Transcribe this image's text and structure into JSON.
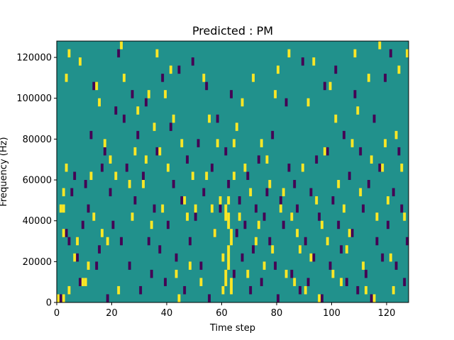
{
  "chart_data": {
    "type": "heatmap",
    "title": "Predicted : PM",
    "xlabel": "Time step",
    "ylabel": "Frequency (Hz)",
    "xlim": [
      0,
      128
    ],
    "ylim": [
      0,
      128000
    ],
    "xticks": [
      0,
      20,
      40,
      60,
      80,
      100,
      120
    ],
    "yticks": [
      0,
      20000,
      40000,
      60000,
      80000,
      100000,
      120000
    ],
    "n_time_steps": 128,
    "n_freq_bins": 128,
    "colors": {
      "background": "#21918c",
      "high": "#fde725",
      "low": "#440154"
    },
    "value_scale": {
      "low": -1,
      "background": 0,
      "high": 1
    },
    "cells_note_units": "each cell: [time_step, freq_bin_start, freq_bin_end]; freq bin width = 1000 Hz",
    "high_cells": [
      [
        0,
        0,
        4
      ],
      [
        2,
        0,
        4
      ],
      [
        2,
        44,
        48
      ],
      [
        1,
        44,
        48
      ],
      [
        2,
        32,
        36
      ],
      [
        3,
        64,
        68
      ],
      [
        2,
        52,
        56
      ],
      [
        3,
        108,
        112
      ],
      [
        4,
        120,
        124
      ],
      [
        4,
        4,
        8
      ],
      [
        6,
        20,
        24
      ],
      [
        7,
        28,
        32
      ],
      [
        8,
        116,
        120
      ],
      [
        9,
        8,
        12
      ],
      [
        10,
        8,
        12
      ],
      [
        11,
        16,
        20
      ],
      [
        12,
        60,
        64
      ],
      [
        13,
        40,
        44
      ],
      [
        14,
        104,
        108
      ],
      [
        15,
        96,
        100
      ],
      [
        16,
        32,
        36
      ],
      [
        17,
        76,
        80
      ],
      [
        18,
        28,
        32
      ],
      [
        19,
        68,
        72
      ],
      [
        21,
        60,
        64
      ],
      [
        22,
        4,
        8
      ],
      [
        23,
        124,
        128
      ],
      [
        24,
        108,
        112
      ],
      [
        26,
        56,
        60
      ],
      [
        27,
        40,
        44
      ],
      [
        28,
        72,
        76
      ],
      [
        29,
        92,
        96
      ],
      [
        31,
        56,
        60
      ],
      [
        32,
        68,
        72
      ],
      [
        33,
        100,
        104
      ],
      [
        34,
        36,
        40
      ],
      [
        35,
        84,
        88
      ],
      [
        36,
        120,
        124
      ],
      [
        37,
        72,
        76
      ],
      [
        38,
        44,
        48
      ],
      [
        39,
        100,
        104
      ],
      [
        40,
        64,
        68
      ],
      [
        41,
        112,
        116
      ],
      [
        42,
        88,
        92
      ],
      [
        43,
        12,
        16
      ],
      [
        44,
        0,
        4
      ],
      [
        45,
        76,
        80
      ],
      [
        46,
        48,
        52
      ],
      [
        47,
        40,
        44
      ],
      [
        48,
        16,
        20
      ],
      [
        49,
        60,
        64
      ],
      [
        50,
        44,
        48
      ],
      [
        52,
        8,
        12
      ],
      [
        53,
        108,
        112
      ],
      [
        54,
        60,
        64
      ],
      [
        55,
        88,
        92
      ],
      [
        56,
        44,
        48
      ],
      [
        57,
        32,
        36
      ],
      [
        58,
        76,
        80
      ],
      [
        59,
        48,
        52
      ],
      [
        60,
        4,
        8
      ],
      [
        60,
        20,
        24
      ],
      [
        61,
        8,
        16
      ],
      [
        61,
        40,
        48
      ],
      [
        62,
        16,
        28
      ],
      [
        62,
        36,
        44
      ],
      [
        62,
        48,
        52
      ],
      [
        63,
        4,
        12
      ],
      [
        63,
        28,
        36
      ],
      [
        64,
        60,
        64
      ],
      [
        64,
        76,
        80
      ],
      [
        65,
        84,
        88
      ],
      [
        66,
        40,
        44
      ],
      [
        67,
        96,
        100
      ],
      [
        68,
        64,
        68
      ],
      [
        69,
        12,
        16
      ],
      [
        70,
        52,
        56
      ],
      [
        71,
        108,
        112
      ],
      [
        72,
        28,
        32
      ],
      [
        73,
        36,
        40
      ],
      [
        74,
        76,
        80
      ],
      [
        75,
        16,
        20
      ],
      [
        76,
        68,
        72
      ],
      [
        77,
        56,
        60
      ],
      [
        78,
        24,
        28
      ],
      [
        79,
        100,
        104
      ],
      [
        80,
        112,
        116
      ],
      [
        81,
        44,
        48
      ],
      [
        82,
        52,
        56
      ],
      [
        83,
        12,
        16
      ],
      [
        84,
        120,
        124
      ],
      [
        85,
        40,
        44
      ],
      [
        86,
        8,
        12
      ],
      [
        87,
        32,
        36
      ],
      [
        88,
        24,
        28
      ],
      [
        89,
        64,
        68
      ],
      [
        90,
        4,
        8
      ],
      [
        91,
        96,
        100
      ],
      [
        92,
        20,
        24
      ],
      [
        93,
        116,
        120
      ],
      [
        94,
        48,
        52
      ],
      [
        95,
        0,
        4
      ],
      [
        96,
        36,
        40
      ],
      [
        97,
        72,
        76
      ],
      [
        98,
        28,
        32
      ],
      [
        99,
        104,
        108
      ],
      [
        100,
        12,
        16
      ],
      [
        101,
        88,
        92
      ],
      [
        102,
        56,
        60
      ],
      [
        103,
        8,
        12
      ],
      [
        104,
        44,
        48
      ],
      [
        105,
        24,
        28
      ],
      [
        106,
        32,
        36
      ],
      [
        107,
        76,
        80
      ],
      [
        108,
        120,
        124
      ],
      [
        109,
        92,
        96
      ],
      [
        110,
        52,
        56
      ],
      [
        111,
        16,
        20
      ],
      [
        112,
        4,
        8
      ],
      [
        113,
        108,
        112
      ],
      [
        114,
        68,
        72
      ],
      [
        115,
        0,
        4
      ],
      [
        116,
        40,
        44
      ],
      [
        117,
        124,
        128
      ],
      [
        118,
        64,
        68
      ],
      [
        119,
        76,
        80
      ],
      [
        120,
        48,
        52
      ],
      [
        121,
        20,
        24
      ],
      [
        122,
        4,
        8
      ],
      [
        123,
        80,
        84
      ],
      [
        124,
        112,
        116
      ],
      [
        125,
        64,
        68
      ],
      [
        126,
        40,
        44
      ],
      [
        127,
        120,
        124
      ]
    ],
    "low_cells": [
      [
        0,
        0,
        4
      ],
      [
        1,
        0,
        4
      ],
      [
        3,
        32,
        36
      ],
      [
        4,
        28,
        32
      ],
      [
        5,
        52,
        56
      ],
      [
        6,
        60,
        64
      ],
      [
        7,
        20,
        24
      ],
      [
        8,
        8,
        12
      ],
      [
        9,
        36,
        40
      ],
      [
        10,
        56,
        60
      ],
      [
        11,
        44,
        48
      ],
      [
        12,
        80,
        84
      ],
      [
        13,
        104,
        108
      ],
      [
        14,
        16,
        20
      ],
      [
        15,
        24,
        28
      ],
      [
        16,
        64,
        68
      ],
      [
        17,
        72,
        76
      ],
      [
        18,
        0,
        4
      ],
      [
        19,
        52,
        56
      ],
      [
        20,
        36,
        40
      ],
      [
        21,
        92,
        96
      ],
      [
        22,
        120,
        124
      ],
      [
        23,
        28,
        32
      ],
      [
        24,
        88,
        92
      ],
      [
        25,
        64,
        68
      ],
      [
        26,
        16,
        20
      ],
      [
        27,
        100,
        104
      ],
      [
        28,
        48,
        52
      ],
      [
        29,
        80,
        84
      ],
      [
        30,
        4,
        8
      ],
      [
        31,
        60,
        64
      ],
      [
        32,
        96,
        100
      ],
      [
        33,
        28,
        32
      ],
      [
        34,
        12,
        16
      ],
      [
        35,
        44,
        48
      ],
      [
        36,
        72,
        76
      ],
      [
        37,
        24,
        28
      ],
      [
        38,
        108,
        112
      ],
      [
        39,
        8,
        12
      ],
      [
        40,
        36,
        40
      ],
      [
        41,
        84,
        88
      ],
      [
        42,
        56,
        60
      ],
      [
        43,
        20,
        24
      ],
      [
        44,
        112,
        116
      ],
      [
        45,
        48,
        52
      ],
      [
        46,
        4,
        8
      ],
      [
        47,
        68,
        72
      ],
      [
        48,
        28,
        32
      ],
      [
        49,
        116,
        120
      ],
      [
        50,
        40,
        44
      ],
      [
        51,
        76,
        80
      ],
      [
        52,
        16,
        20
      ],
      [
        53,
        52,
        56
      ],
      [
        54,
        104,
        108
      ],
      [
        55,
        0,
        4
      ],
      [
        56,
        64,
        68
      ],
      [
        57,
        32,
        36
      ],
      [
        58,
        88,
        92
      ],
      [
        59,
        44,
        48
      ],
      [
        61,
        72,
        76
      ],
      [
        62,
        56,
        60
      ],
      [
        63,
        100,
        104
      ],
      [
        64,
        12,
        16
      ],
      [
        65,
        32,
        36
      ],
      [
        66,
        48,
        52
      ],
      [
        67,
        20,
        24
      ],
      [
        68,
        36,
        40
      ],
      [
        69,
        60,
        64
      ],
      [
        70,
        4,
        8
      ],
      [
        71,
        24,
        28
      ],
      [
        72,
        44,
        48
      ],
      [
        73,
        68,
        72
      ],
      [
        74,
        8,
        12
      ],
      [
        75,
        40,
        44
      ],
      [
        76,
        52,
        56
      ],
      [
        77,
        28,
        32
      ],
      [
        78,
        80,
        84
      ],
      [
        79,
        16,
        20
      ],
      [
        80,
        0,
        4
      ],
      [
        81,
        48,
        52
      ],
      [
        82,
        36,
        40
      ],
      [
        83,
        96,
        100
      ],
      [
        84,
        64,
        68
      ],
      [
        85,
        12,
        16
      ],
      [
        86,
        56,
        60
      ],
      [
        87,
        44,
        48
      ],
      [
        88,
        4,
        8
      ],
      [
        89,
        116,
        120
      ],
      [
        90,
        28,
        32
      ],
      [
        91,
        8,
        12
      ],
      [
        92,
        52,
        56
      ],
      [
        93,
        20,
        24
      ],
      [
        94,
        68,
        72
      ],
      [
        95,
        40,
        44
      ],
      [
        96,
        0,
        4
      ],
      [
        97,
        104,
        108
      ],
      [
        98,
        72,
        76
      ],
      [
        99,
        16,
        20
      ],
      [
        100,
        48,
        52
      ],
      [
        101,
        112,
        116
      ],
      [
        102,
        36,
        40
      ],
      [
        103,
        24,
        28
      ],
      [
        104,
        80,
        84
      ],
      [
        105,
        8,
        12
      ],
      [
        106,
        60,
        64
      ],
      [
        107,
        32,
        36
      ],
      [
        108,
        100,
        104
      ],
      [
        109,
        4,
        8
      ],
      [
        110,
        72,
        76
      ],
      [
        111,
        44,
        48
      ],
      [
        112,
        12,
        16
      ],
      [
        113,
        56,
        60
      ],
      [
        114,
        0,
        4
      ],
      [
        115,
        88,
        92
      ],
      [
        116,
        28,
        32
      ],
      [
        117,
        64,
        68
      ],
      [
        118,
        20,
        24
      ],
      [
        119,
        108,
        112
      ],
      [
        120,
        36,
        40
      ],
      [
        121,
        120,
        124
      ],
      [
        122,
        52,
        56
      ],
      [
        123,
        16,
        20
      ],
      [
        124,
        72,
        76
      ],
      [
        125,
        44,
        48
      ],
      [
        126,
        8,
        12
      ],
      [
        127,
        28,
        32
      ]
    ]
  }
}
